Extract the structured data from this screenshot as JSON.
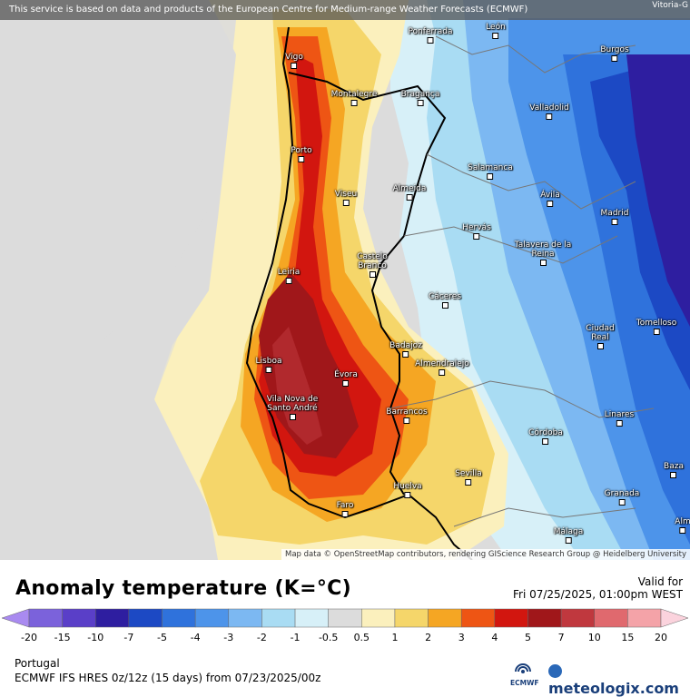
{
  "banner": {
    "text": "This service is based on data and products of the European Centre for Medium-range Weather Forecasts (ECMWF)",
    "corner_text": "Vitoria-G"
  },
  "attribution": "Map data © OpenStreetMap contributors, rendering GIScience Research Group @ Heidelberg University",
  "cities": [
    {
      "name": "Ponferrada"
    },
    {
      "name": "León"
    },
    {
      "name": "Burgos"
    },
    {
      "name": "Vigo"
    },
    {
      "name": "Montalegre"
    },
    {
      "name": "Bragança"
    },
    {
      "name": "Valladolid"
    },
    {
      "name": "Porto"
    },
    {
      "name": "Salamanca"
    },
    {
      "name": "Almeida"
    },
    {
      "name": "Viseu"
    },
    {
      "name": "Ávila"
    },
    {
      "name": "Madrid"
    },
    {
      "name": "Hervás"
    },
    {
      "name": "Talavera de la Reina"
    },
    {
      "name": "Castelo Branco"
    },
    {
      "name": "Leiria"
    },
    {
      "name": "Cáceres"
    },
    {
      "name": "Tomelloso"
    },
    {
      "name": "Ciudad Real"
    },
    {
      "name": "Badajoz"
    },
    {
      "name": "Lisboa"
    },
    {
      "name": "Almendralejo"
    },
    {
      "name": "Évora"
    },
    {
      "name": "Vila Nova de Santo André"
    },
    {
      "name": "Barrancos"
    },
    {
      "name": "Linares"
    },
    {
      "name": "Córdoba"
    },
    {
      "name": "Baza"
    },
    {
      "name": "Sevilla"
    },
    {
      "name": "Huelva"
    },
    {
      "name": "Granada"
    },
    {
      "name": "Faro"
    },
    {
      "name": "Málaga"
    },
    {
      "name": "Alm"
    }
  ],
  "legend": {
    "title": "Anomaly temperature (K=°C)",
    "valid_label": "Valid for",
    "valid_date": "Fri 07/25/2025, 01:00pm WEST",
    "tick_labels": [
      "-20",
      "-15",
      "-10",
      "-7",
      "-5",
      "-4",
      "-3",
      "-2",
      "-1",
      "-0.5",
      "0.5",
      "1",
      "2",
      "3",
      "4",
      "5",
      "7",
      "10",
      "15",
      "20"
    ],
    "bin_colors": [
      "#a98af0",
      "#7b62db",
      "#5a3fc8",
      "#2e1ea0",
      "#1c49c4",
      "#2f72dc",
      "#4d94ea",
      "#7cb8f2",
      "#a9dcf3",
      "#d7f0f8",
      "#dcdcdc",
      "#fbf0bd",
      "#f5d66a",
      "#f5a623",
      "#ee5514",
      "#d2160f",
      "#a0171a",
      "#c0383e",
      "#e0696e",
      "#f4a3a8",
      "#fbd3dd"
    ]
  },
  "footer": {
    "region": "Portugal",
    "model": "ECMWF IFS HRES 0z/12z (15 days) from 07/23/2025/00z",
    "ecmwf_label": "ECMWF",
    "brand": "meteologix.com"
  }
}
